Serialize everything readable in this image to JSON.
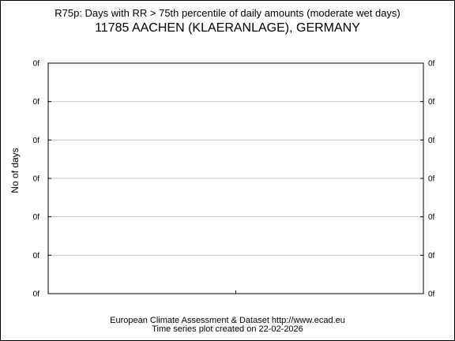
{
  "chart_data": {
    "type": "line",
    "title": "R75p: Days with RR > 75th percentile of daily amounts (moderate wet days)",
    "subtitle": "11785 AACHEN (KLAERANLAGE), GERMANY",
    "xlabel": "",
    "ylabel": "No of days",
    "y_tick_labels": [
      "0f",
      "0f",
      "0f",
      "0f",
      "0f",
      "0f",
      "0f"
    ],
    "x": [],
    "series": [],
    "grid": true,
    "legend": "none"
  },
  "footer": {
    "line1": "European Climate Assessment & Dataset  http://www.ecad.eu",
    "line2": "Time series plot created on 22-02-2026"
  },
  "colors": {
    "frame": "#000000",
    "grid": "#c8c8c8",
    "background": "#ffffff"
  }
}
